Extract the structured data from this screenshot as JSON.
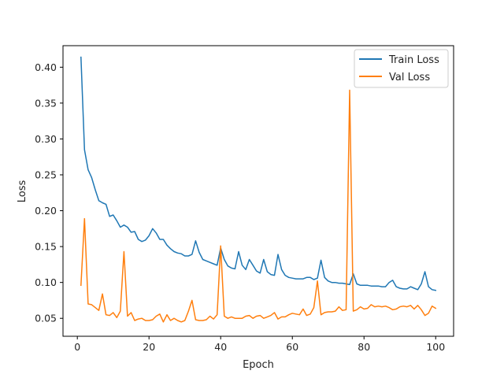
{
  "chart_data": {
    "type": "line",
    "title": "",
    "xlabel": "Epoch",
    "ylabel": "Loss",
    "xlim": [
      -4,
      105
    ],
    "ylim": [
      0.025,
      0.43
    ],
    "xticks": [
      0,
      20,
      40,
      60,
      80,
      100
    ],
    "yticks": [
      0.05,
      0.1,
      0.15,
      0.2,
      0.25,
      0.3,
      0.35,
      0.4
    ],
    "xtick_labels": [
      "0",
      "20",
      "40",
      "60",
      "80",
      "100"
    ],
    "ytick_labels": [
      "0.05",
      "0.10",
      "0.15",
      "0.20",
      "0.25",
      "0.30",
      "0.35",
      "0.40"
    ],
    "grid": false,
    "legend_position": "top-right",
    "x": [
      1,
      2,
      3,
      4,
      5,
      6,
      7,
      8,
      9,
      10,
      11,
      12,
      13,
      14,
      15,
      16,
      17,
      18,
      19,
      20,
      21,
      22,
      23,
      24,
      25,
      26,
      27,
      28,
      29,
      30,
      31,
      32,
      33,
      34,
      35,
      36,
      37,
      38,
      39,
      40,
      41,
      42,
      43,
      44,
      45,
      46,
      47,
      48,
      49,
      50,
      51,
      52,
      53,
      54,
      55,
      56,
      57,
      58,
      59,
      60,
      61,
      62,
      63,
      64,
      65,
      66,
      67,
      68,
      69,
      70,
      71,
      72,
      73,
      74,
      75,
      76,
      77,
      78,
      79,
      80,
      81,
      82,
      83,
      84,
      85,
      86,
      87,
      88,
      89,
      90,
      91,
      92,
      93,
      94,
      95,
      96,
      97,
      98,
      99,
      100
    ],
    "series": [
      {
        "name": "Train Loss",
        "color": "#1f77b4",
        "values": [
          0.414,
          0.285,
          0.257,
          0.246,
          0.229,
          0.214,
          0.211,
          0.209,
          0.192,
          0.194,
          0.186,
          0.177,
          0.18,
          0.177,
          0.17,
          0.171,
          0.16,
          0.157,
          0.159,
          0.165,
          0.175,
          0.169,
          0.16,
          0.16,
          0.152,
          0.147,
          0.143,
          0.141,
          0.14,
          0.137,
          0.137,
          0.139,
          0.158,
          0.142,
          0.132,
          0.13,
          0.128,
          0.126,
          0.124,
          0.148,
          0.132,
          0.123,
          0.12,
          0.119,
          0.143,
          0.124,
          0.118,
          0.132,
          0.124,
          0.116,
          0.113,
          0.132,
          0.115,
          0.111,
          0.11,
          0.139,
          0.118,
          0.11,
          0.107,
          0.106,
          0.105,
          0.105,
          0.105,
          0.107,
          0.107,
          0.104,
          0.106,
          0.131,
          0.107,
          0.102,
          0.1,
          0.1,
          0.099,
          0.099,
          0.098,
          0.097,
          0.112,
          0.098,
          0.096,
          0.096,
          0.096,
          0.095,
          0.095,
          0.095,
          0.094,
          0.094,
          0.1,
          0.103,
          0.094,
          0.092,
          0.091,
          0.091,
          0.094,
          0.092,
          0.09,
          0.098,
          0.115,
          0.094,
          0.09,
          0.089
        ]
      },
      {
        "name": "Val Loss",
        "color": "#ff7f0e",
        "values": [
          0.096,
          0.189,
          0.07,
          0.069,
          0.065,
          0.061,
          0.084,
          0.055,
          0.054,
          0.058,
          0.051,
          0.06,
          0.143,
          0.053,
          0.058,
          0.047,
          0.049,
          0.05,
          0.047,
          0.047,
          0.048,
          0.053,
          0.056,
          0.045,
          0.055,
          0.047,
          0.05,
          0.047,
          0.045,
          0.047,
          0.06,
          0.075,
          0.048,
          0.047,
          0.047,
          0.048,
          0.053,
          0.049,
          0.055,
          0.151,
          0.053,
          0.05,
          0.052,
          0.05,
          0.05,
          0.05,
          0.053,
          0.054,
          0.05,
          0.053,
          0.054,
          0.05,
          0.052,
          0.054,
          0.058,
          0.049,
          0.052,
          0.052,
          0.055,
          0.057,
          0.056,
          0.055,
          0.063,
          0.054,
          0.056,
          0.065,
          0.102,
          0.055,
          0.058,
          0.059,
          0.059,
          0.06,
          0.066,
          0.061,
          0.062,
          0.368,
          0.06,
          0.062,
          0.066,
          0.063,
          0.064,
          0.069,
          0.066,
          0.067,
          0.066,
          0.067,
          0.065,
          0.062,
          0.063,
          0.066,
          0.067,
          0.066,
          0.068,
          0.063,
          0.068,
          0.062,
          0.054,
          0.057,
          0.067,
          0.064
        ]
      }
    ]
  }
}
